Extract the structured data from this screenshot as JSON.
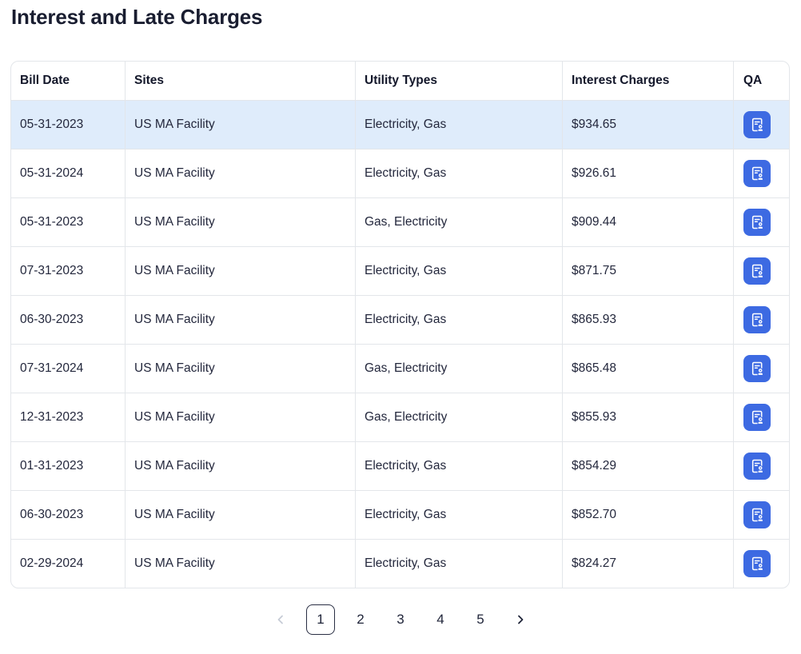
{
  "page": {
    "title": "Interest and Late Charges"
  },
  "table": {
    "columns": [
      "Bill Date",
      "Sites",
      "Utility Types",
      "Interest Charges",
      "QA"
    ],
    "rows": [
      {
        "bill_date": "05-31-2023",
        "site": "US MA Facility",
        "utility_types": "Electricity, Gas",
        "interest_charges": "$934.65",
        "highlighted": true
      },
      {
        "bill_date": "05-31-2024",
        "site": "US MA Facility",
        "utility_types": "Electricity, Gas",
        "interest_charges": "$926.61",
        "highlighted": false
      },
      {
        "bill_date": "05-31-2023",
        "site": "US MA Facility",
        "utility_types": "Gas, Electricity",
        "interest_charges": "$909.44",
        "highlighted": false
      },
      {
        "bill_date": "07-31-2023",
        "site": "US MA Facility",
        "utility_types": "Electricity, Gas",
        "interest_charges": "$871.75",
        "highlighted": false
      },
      {
        "bill_date": "06-30-2023",
        "site": "US MA Facility",
        "utility_types": "Electricity, Gas",
        "interest_charges": "$865.93",
        "highlighted": false
      },
      {
        "bill_date": "07-31-2024",
        "site": "US MA Facility",
        "utility_types": "Gas, Electricity",
        "interest_charges": "$865.48",
        "highlighted": false
      },
      {
        "bill_date": "12-31-2023",
        "site": "US MA Facility",
        "utility_types": "Gas, Electricity",
        "interest_charges": "$855.93",
        "highlighted": false
      },
      {
        "bill_date": "01-31-2023",
        "site": "US MA Facility",
        "utility_types": "Electricity, Gas",
        "interest_charges": "$854.29",
        "highlighted": false
      },
      {
        "bill_date": "06-30-2023",
        "site": "US MA Facility",
        "utility_types": "Electricity, Gas",
        "interest_charges": "$852.70",
        "highlighted": false
      },
      {
        "bill_date": "02-29-2024",
        "site": "US MA Facility",
        "utility_types": "Electricity, Gas",
        "interest_charges": "$824.27",
        "highlighted": false
      }
    ]
  },
  "pagination": {
    "pages": [
      "1",
      "2",
      "3",
      "4",
      "5"
    ],
    "active_page": "1"
  },
  "icons": {
    "qa_icon": "document-user-icon",
    "prev_icon": "chevron-left-icon",
    "next_icon": "chevron-right-icon"
  },
  "colors": {
    "accent_blue": "#3d6ae2",
    "row_highlight": "#dfecfb",
    "table_border": "#e3e6ea",
    "text_dark": "#191d30",
    "disabled_chevron": "#c6ccd6"
  }
}
